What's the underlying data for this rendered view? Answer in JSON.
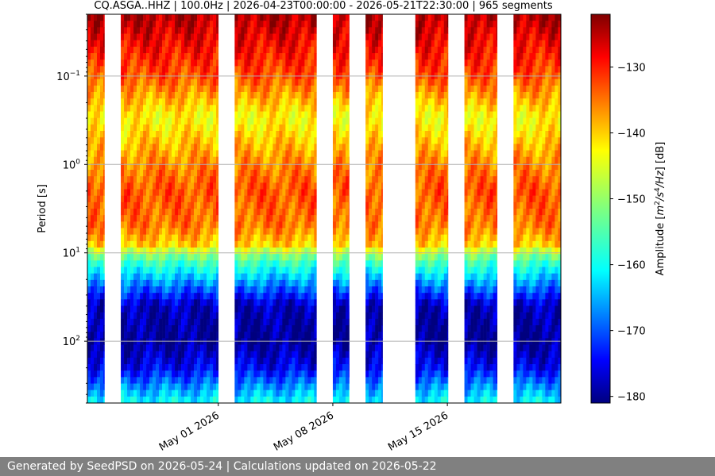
{
  "chart_data": {
    "type": "heatmap",
    "title": "CQ.ASGA..HHZ | 100.0Hz | 2026-04-23T00:00:00 - 2026-05-21T22:30:00 | 965 segments",
    "ylabel": "Period [s]",
    "yscale": "log",
    "yinvert": true,
    "ylim": [
      0.02,
      500
    ],
    "yticks": [
      {
        "value": 0.1,
        "base": "10",
        "exp": "−1"
      },
      {
        "value": 1,
        "base": "10",
        "exp": "0"
      },
      {
        "value": 10,
        "base": "10",
        "exp": "1"
      },
      {
        "value": 100,
        "base": "10",
        "exp": "2"
      }
    ],
    "xlim": [
      "2026-04-23T00:00:00",
      "2026-05-21T22:30:00"
    ],
    "xticks": [
      {
        "date": "2026-05-01",
        "label": "May 01 2026"
      },
      {
        "date": "2026-05-08",
        "label": "May 08 2026"
      },
      {
        "date": "2026-05-15",
        "label": "May 15 2026"
      }
    ],
    "grid": true,
    "data_segments": [
      [
        "2026-04-23T00:00",
        "2026-04-24T01:00"
      ],
      [
        "2026-04-25T01:00",
        "2026-05-01T00:00"
      ],
      [
        "2026-05-02T00:00",
        "2026-05-07T00:00"
      ],
      [
        "2026-05-08T00:00",
        "2026-05-09T00:00"
      ],
      [
        "2026-05-10T00:00",
        "2026-05-11T01:00"
      ],
      [
        "2026-05-13T01:00",
        "2026-05-15T01:00"
      ],
      [
        "2026-05-16T01:00",
        "2026-05-18T01:00"
      ],
      [
        "2026-05-19T01:00",
        "2026-05-21T22:30"
      ]
    ],
    "amplitude_profile_db": {
      "period_s": [
        0.02,
        0.1,
        0.3,
        1,
        2,
        5,
        8,
        12,
        20,
        40,
        100,
        200,
        500
      ],
      "amplitude_db": [
        -124,
        -133,
        -143,
        -136,
        -133,
        -135,
        -140,
        -155,
        -165,
        -178,
        -180,
        -175,
        -160
      ]
    },
    "colorbar": {
      "label": "Amplitude [m²/s⁴/Hz] [dB]",
      "label_parts": {
        "pre": "Amplitude [",
        "m": "m",
        "sup1": "2",
        "s": "/s",
        "sup2": "4",
        "post": "/",
        "hz": "Hz",
        "end": "] [dB]"
      },
      "colormap": "jet",
      "range": [
        -181,
        -122
      ],
      "ticks": [
        -130,
        -140,
        -150,
        -160,
        -170,
        -180
      ]
    }
  },
  "footer": {
    "text": "Generated by SeedPSD on 2026-05-24 | Calculations updated on 2026-05-22"
  }
}
